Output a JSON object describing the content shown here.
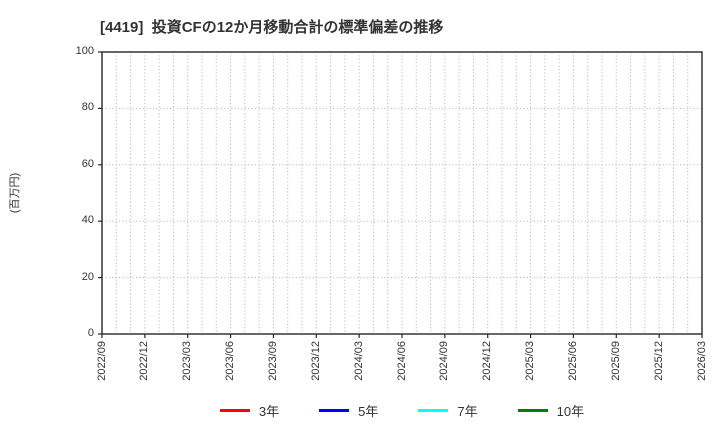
{
  "chart_data": {
    "type": "line",
    "title": "[4419]  投資CFの12か月移動合計の標準偏差の推移",
    "ylabel": "(百万円)",
    "ylim": [
      0,
      100
    ],
    "yticks": [
      0,
      20,
      40,
      60,
      80,
      100
    ],
    "x_tick_labels": [
      "2022/09",
      "2022/12",
      "2023/03",
      "2023/06",
      "2023/09",
      "2023/12",
      "2024/03",
      "2024/06",
      "2024/09",
      "2024/12",
      "2025/03",
      "2025/06",
      "2025/09",
      "2025/12",
      "2026/03"
    ],
    "x_total_month_intervals": 42,
    "x_tick_month_indices": [
      0,
      3,
      6,
      9,
      12,
      15,
      18,
      21,
      24,
      27,
      30,
      33,
      36,
      39,
      42
    ],
    "grid": true,
    "legend_position": "bottom",
    "axis_color": "#262626",
    "grid_color": "#b0b0b0",
    "series": [
      {
        "name": "3年",
        "color": "#ff0000",
        "x": [],
        "values": []
      },
      {
        "name": "5年",
        "color": "#0000ff",
        "x": [],
        "values": []
      },
      {
        "name": "7年",
        "color": "#00ffff",
        "x": [],
        "values": []
      },
      {
        "name": "10年",
        "color": "#008000",
        "x": [],
        "values": []
      }
    ]
  }
}
